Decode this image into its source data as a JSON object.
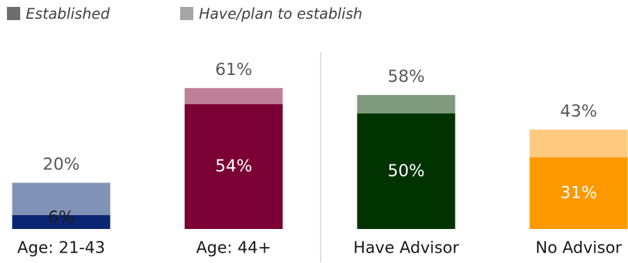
{
  "chart_data": {
    "type": "bar",
    "overlap": true,
    "categories": [
      "Age: 21-43",
      "Age: 44+",
      "Have Advisor",
      "No Advisor"
    ],
    "series": [
      {
        "name": "Established",
        "color": "#6d6d6d",
        "colors": [
          "#0a2673",
          "#7b0033",
          "#003300",
          "#ff9900"
        ],
        "values": [
          6,
          54,
          50,
          31
        ],
        "value_labels": [
          "6%",
          "54%",
          "50%",
          "31%"
        ]
      },
      {
        "name": "Have/plan to establish",
        "color": "#a6a6a6",
        "colors": [
          "#8093b7",
          "#bf8097",
          "#7f9a7f",
          "#ffc980"
        ],
        "values": [
          20,
          61,
          58,
          43
        ],
        "value_labels": [
          "20%",
          "61%",
          "58%",
          "43%"
        ]
      }
    ],
    "divider_after": 1
  }
}
